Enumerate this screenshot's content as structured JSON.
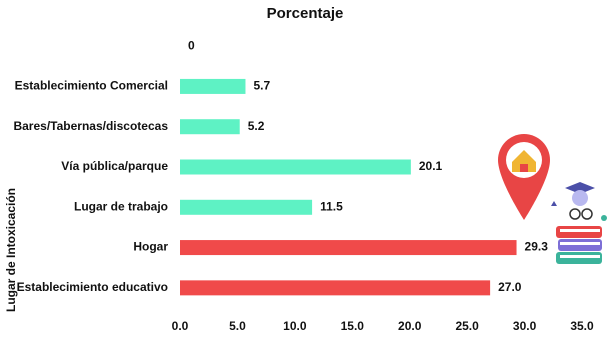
{
  "chart_data": {
    "type": "bar",
    "orientation": "horizontal",
    "title": "Porcentaje",
    "y_label": "Lugar de Intoxicación",
    "categories": [
      null,
      "Establecimiento Comercial",
      "Bares/Tabernas/discotecas",
      "Vía pública/parque",
      "Lugar de trabajo",
      "Hogar",
      "Establecimiento educativo"
    ],
    "values": [
      0,
      5.7,
      5.2,
      20.1,
      11.5,
      29.3,
      27.0
    ],
    "value_labels": [
      "0",
      "5.7",
      "5.2",
      "20.1",
      "11.5",
      "29.3",
      "27.0"
    ],
    "colors": [
      "#5ef2c4",
      "#5ef2c4",
      "#5ef2c4",
      "#5ef2c4",
      "#5ef2c4",
      "#f04a4a",
      "#f04a4a"
    ],
    "xlim": [
      0,
      35
    ],
    "xticks": [
      {
        "value": 0,
        "label": "0.0"
      },
      {
        "value": 5,
        "label": "5.0"
      },
      {
        "value": 10,
        "label": "10.0"
      },
      {
        "value": 15,
        "label": "15.0"
      },
      {
        "value": 20,
        "label": "20.0"
      },
      {
        "value": 25,
        "label": "25.0"
      },
      {
        "value": 30,
        "label": "30.0"
      },
      {
        "value": 35,
        "label": "35.0"
      }
    ],
    "grid": false
  }
}
